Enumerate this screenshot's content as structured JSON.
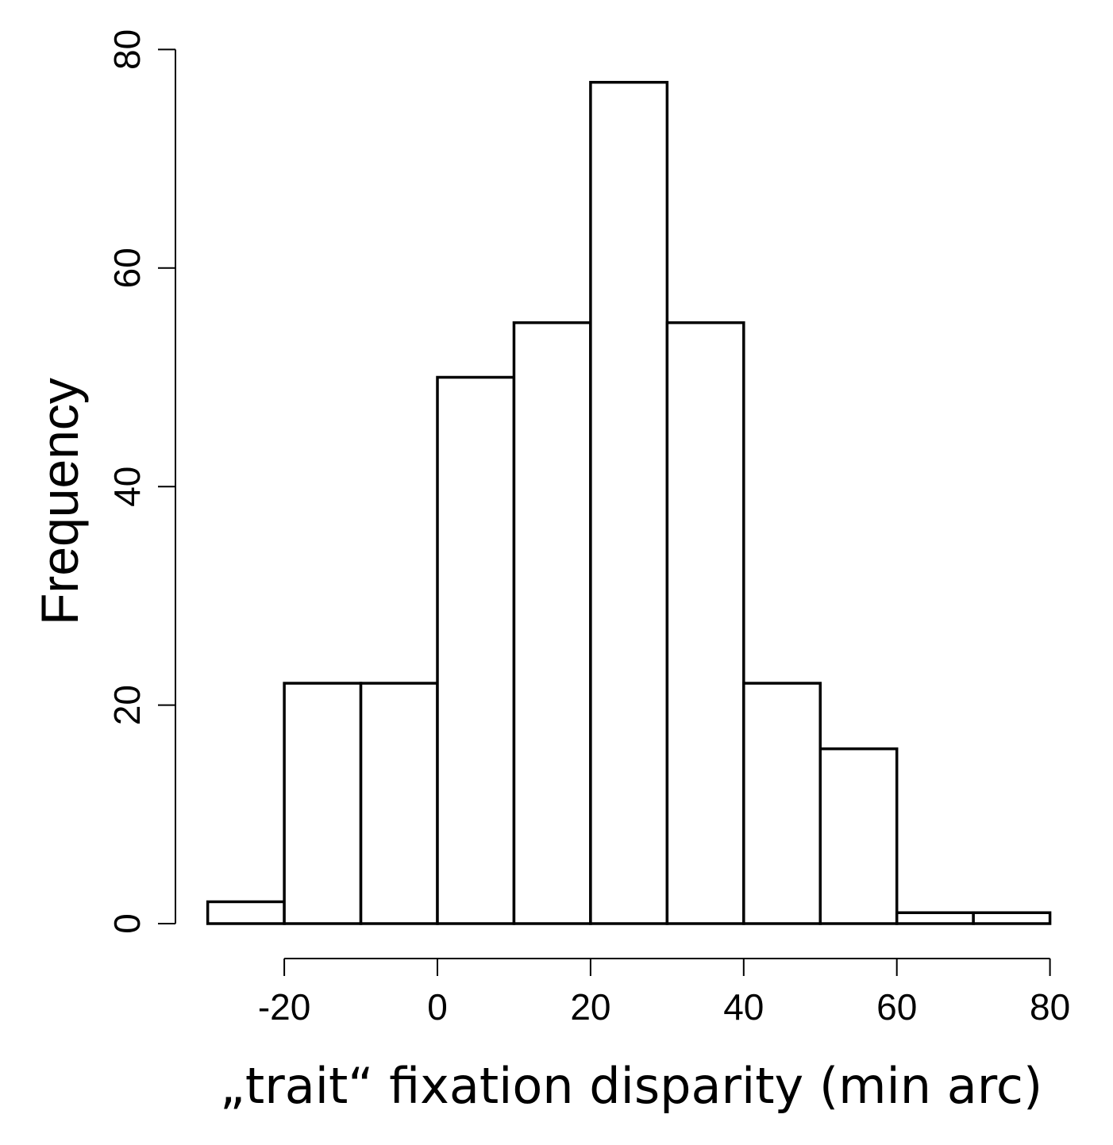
{
  "chart_data": {
    "type": "bar",
    "subtype": "histogram",
    "bins": [
      {
        "start": -30,
        "end": -20,
        "count": 2
      },
      {
        "start": -20,
        "end": -10,
        "count": 22
      },
      {
        "start": -10,
        "end": 0,
        "count": 22
      },
      {
        "start": 0,
        "end": 10,
        "count": 50
      },
      {
        "start": 10,
        "end": 20,
        "count": 55
      },
      {
        "start": 20,
        "end": 30,
        "count": 77
      },
      {
        "start": 30,
        "end": 40,
        "count": 55
      },
      {
        "start": 40,
        "end": 50,
        "count": 22
      },
      {
        "start": 50,
        "end": 60,
        "count": 16
      },
      {
        "start": 60,
        "end": 70,
        "count": 1
      },
      {
        "start": 70,
        "end": 80,
        "count": 1
      }
    ],
    "xlabel": "„trait“ fixation disparity (min arc)",
    "ylabel": "Frequency",
    "xticks": [
      -20,
      0,
      20,
      40,
      60,
      80
    ],
    "yticks": [
      0,
      20,
      40,
      60,
      80
    ],
    "xlim": [
      -30,
      80
    ],
    "ylim": [
      0,
      80
    ],
    "grid": false,
    "colors": {
      "bar_fill": "#ffffff",
      "bar_stroke": "#000000"
    }
  }
}
